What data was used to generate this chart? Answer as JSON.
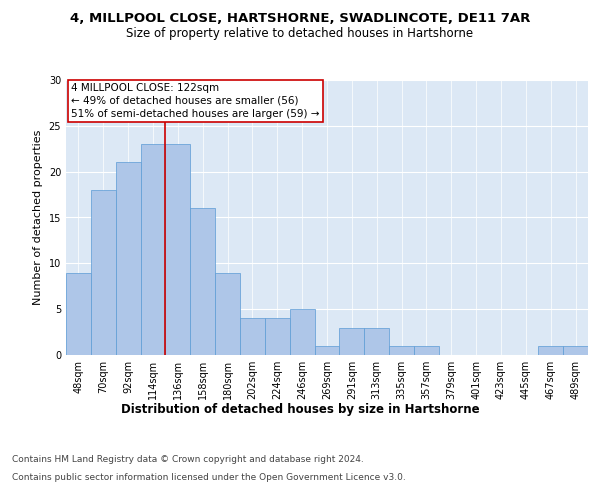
{
  "title": "4, MILLPOOL CLOSE, HARTSHORNE, SWADLINCOTE, DE11 7AR",
  "subtitle": "Size of property relative to detached houses in Hartshorne",
  "xlabel": "Distribution of detached houses by size in Hartshorne",
  "ylabel": "Number of detached properties",
  "categories": [
    "48sqm",
    "70sqm",
    "92sqm",
    "114sqm",
    "136sqm",
    "158sqm",
    "180sqm",
    "202sqm",
    "224sqm",
    "246sqm",
    "269sqm",
    "291sqm",
    "313sqm",
    "335sqm",
    "357sqm",
    "379sqm",
    "401sqm",
    "423sqm",
    "445sqm",
    "467sqm",
    "489sqm"
  ],
  "values": [
    9,
    18,
    21,
    23,
    23,
    16,
    9,
    4,
    4,
    5,
    1,
    3,
    3,
    1,
    1,
    0,
    0,
    0,
    0,
    1,
    1
  ],
  "bar_color": "#aec6e8",
  "bar_edgecolor": "#5b9bd5",
  "bar_width": 1.0,
  "red_line_index": 3.5,
  "red_line_color": "#cc0000",
  "annotation_line1": "4 MILLPOOL CLOSE: 122sqm",
  "annotation_line2": "← 49% of detached houses are smaller (56)",
  "annotation_line3": "51% of semi-detached houses are larger (59) →",
  "annotation_box_color": "#cc0000",
  "ylim": [
    0,
    30
  ],
  "yticks": [
    0,
    5,
    10,
    15,
    20,
    25,
    30
  ],
  "background_color": "#dce8f5",
  "footer_line1": "Contains HM Land Registry data © Crown copyright and database right 2024.",
  "footer_line2": "Contains public sector information licensed under the Open Government Licence v3.0.",
  "title_fontsize": 9.5,
  "subtitle_fontsize": 8.5,
  "xlabel_fontsize": 8.5,
  "ylabel_fontsize": 8,
  "tick_fontsize": 7,
  "annotation_fontsize": 7.5,
  "footer_fontsize": 6.5
}
